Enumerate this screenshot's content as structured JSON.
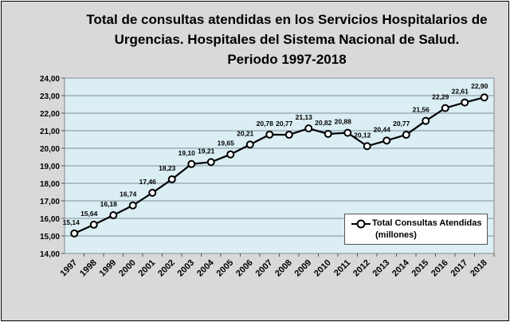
{
  "chart_data": {
    "type": "line",
    "title": "Total de consultas atendidas en los Servicios Hospitalarios de Urgencias. Hospitales del Sistema Nacional de Salud. Periodo 1997-2018",
    "title_lines": [
      "Total de consultas atendidas en los Servicios Hospitalarios de",
      "Urgencias. Hospitales del Sistema Nacional de Salud.",
      "Periodo 1997-2018"
    ],
    "categories": [
      "1997",
      "1998",
      "1999",
      "2000",
      "2001",
      "2002",
      "2003",
      "2004",
      "2005",
      "2006",
      "2007",
      "2008",
      "2009",
      "2010",
      "2011",
      "2012",
      "2013",
      "2014",
      "2015",
      "2016",
      "2017",
      "2018"
    ],
    "series": [
      {
        "name": "Total Consultas Atendidas (millones)",
        "name_lines": [
          "Total Consultas Atendidas",
          "(millones)"
        ],
        "values": [
          15.14,
          15.64,
          16.18,
          16.74,
          17.46,
          18.23,
          19.1,
          19.21,
          19.65,
          20.21,
          20.78,
          20.77,
          21.13,
          20.82,
          20.88,
          20.12,
          20.44,
          20.77,
          21.56,
          22.29,
          22.61,
          22.9
        ],
        "data_labels": [
          "15,14",
          "15,64",
          "16,18",
          "16,74",
          "17,46",
          "18,23",
          "19,10",
          "19,21",
          "19,65",
          "20,21",
          "20,78",
          "20,77",
          "21,13",
          "20,82",
          "20,88",
          "20,12",
          "20,44",
          "20,77",
          "21,56",
          "22,29",
          "22,61",
          "22,90"
        ],
        "color": "#000000",
        "marker": "open-circle"
      }
    ],
    "y_ticks": [
      "14,00",
      "15,00",
      "16,00",
      "17,00",
      "18,00",
      "19,00",
      "20,00",
      "21,00",
      "22,00",
      "23,00",
      "24,00"
    ],
    "ylim": [
      14,
      24
    ],
    "grid": true,
    "legend_position": "bottom-right",
    "plot_background": "#daeef3",
    "background": "#d9d9d9"
  }
}
